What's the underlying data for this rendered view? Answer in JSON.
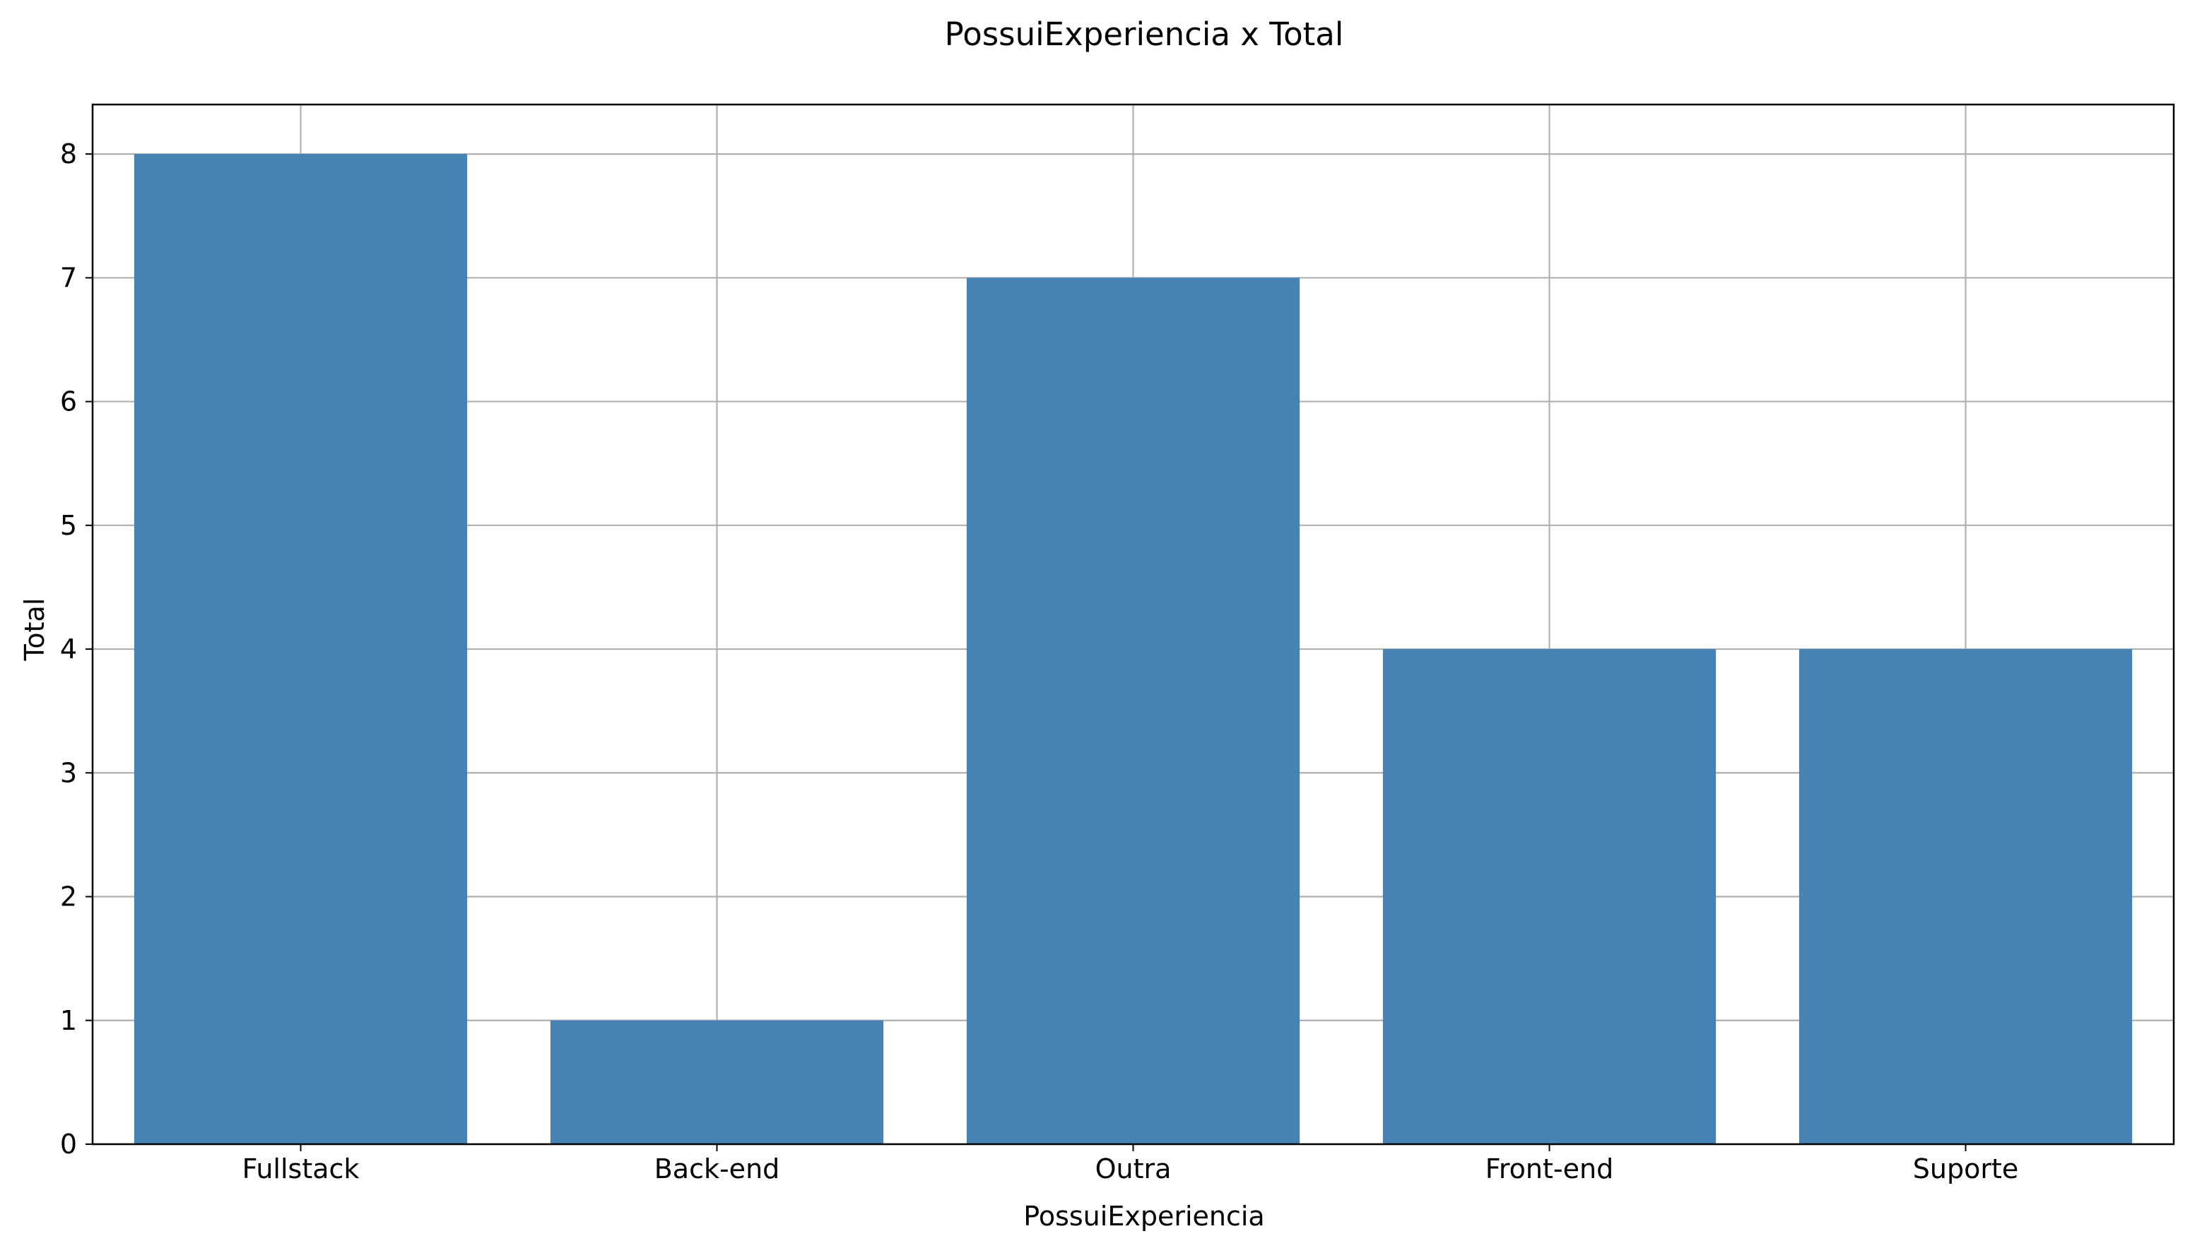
{
  "chart_data": {
    "type": "bar",
    "title": "PossuiExperiencia x Total",
    "xlabel": "PossuiExperiencia",
    "ylabel": "Total",
    "categories": [
      "Fullstack",
      "Back-end",
      "Outra",
      "Front-end",
      "Suporte"
    ],
    "values": [
      8,
      1,
      7,
      4,
      4
    ],
    "ylim": [
      0,
      8.4
    ],
    "yticks": [
      0,
      1,
      2,
      3,
      4,
      5,
      6,
      7,
      8
    ],
    "grid": true,
    "legend": "none",
    "colors": {
      "bar": "#4682b4",
      "grid": "#b0b0b0",
      "axes": "#000000"
    }
  }
}
